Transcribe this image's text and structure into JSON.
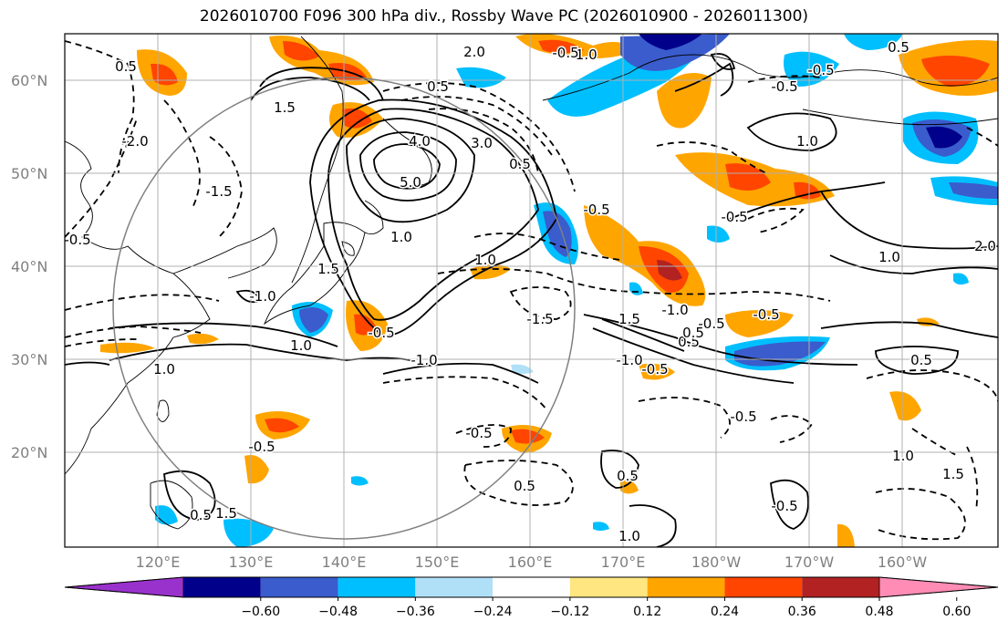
{
  "title": "2026010700 F096 300 hPa div., Rossby Wave PC (2026010900 - 2026011300)",
  "map": {
    "lat_labels": [
      "60°N",
      "50°N",
      "40°N",
      "30°N",
      "20°N"
    ],
    "lon_labels": [
      "120°E",
      "130°E",
      "140°E",
      "150°E",
      "160°E",
      "170°E",
      "180°W",
      "170°W",
      "160°W"
    ],
    "contour_labels": [
      "0.5",
      "1.5",
      "-2.0",
      "-1.5",
      "-0.5",
      "0.5",
      "2.0",
      "5.0",
      "4.0",
      "3.0",
      "-1.0",
      "0.5",
      "-0.5",
      "-0.5",
      "1.0",
      "1.0",
      "-0.5",
      "1.0",
      "2.0",
      "-1.5",
      "1.0",
      "1.0",
      "-1.0",
      "-0.5",
      "1.5",
      "0.5",
      "-0.5",
      "-1.0",
      "0.5",
      "-0.5",
      "0.5",
      "-0.5",
      "-0.5",
      "-0.5",
      "0.5",
      "-0.5",
      "1.0",
      "1.0",
      "1.5",
      "0.5",
      "-0.5",
      "1.5",
      "1.0",
      "-1.0",
      "0.5",
      "-0.5",
      "-0.5",
      "0.5",
      "1.5",
      "-1.0"
    ],
    "colors": {
      "grid": "#b0b0b0",
      "circle": "#808080",
      "coast": "#000000"
    }
  },
  "colorbar": {
    "ticks": [
      "−0.60",
      "−0.48",
      "−0.36",
      "−0.24",
      "−0.12",
      "0.12",
      "0.24",
      "0.36",
      "0.48",
      "0.60"
    ],
    "colors": [
      "#9932cc",
      "#00008b",
      "#3a5ccc",
      "#00bfff",
      "#b0e0f8",
      "#ffffff",
      "#ffe680",
      "#ffa500",
      "#ff4500",
      "#b22222",
      "#ff8cb4"
    ]
  }
}
